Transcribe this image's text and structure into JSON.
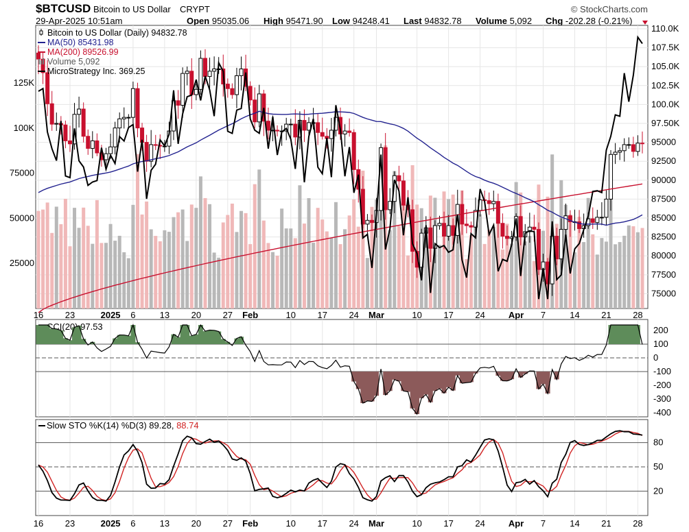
{
  "header": {
    "symbol": "$BTCUSD",
    "name": "Bitcoin to US Dollar",
    "exchange": "CRYPT",
    "watermark": "© StockCharts.com",
    "timestamp": "29-Apr-2025 10:51am",
    "quote": [
      {
        "label": "Open",
        "value": "95035.06"
      },
      {
        "label": "High",
        "value": "95471.90"
      },
      {
        "label": "Low",
        "value": "94248.41"
      },
      {
        "label": "Last",
        "value": "94832.78"
      },
      {
        "label": "Volume",
        "value": "5,092"
      },
      {
        "label": "Chg",
        "value": "-202.28 (-0.21%)"
      }
    ]
  },
  "legend": [
    {
      "text": "Bitcoin to US Dollar (Daily) 94832.78",
      "color": "#000000",
      "icon": "candlestick-icon"
    },
    {
      "text": "MA(50) 85431.98",
      "color": "#22228f",
      "icon": "line-icon"
    },
    {
      "text": "MA(200) 89526.99",
      "color": "#c8102e",
      "icon": "line-icon"
    },
    {
      "text": "Volume 5,092",
      "color": "#555555",
      "icon": "volume-bars-icon"
    },
    {
      "text": "MicroStrategy Inc. 369.25",
      "color": "#000000",
      "icon": "line-icon"
    }
  ],
  "cci_label": "CCI(20) 97.53",
  "sto_label_main": "Slow STO %K(14) %D(3) 89.28,",
  "sto_label_red": "88.74",
  "x_ticks": [
    {
      "label": "16",
      "bold": false
    },
    {
      "label": "23",
      "bold": false
    },
    {
      "label": "2025",
      "bold": true
    },
    {
      "label": "6",
      "bold": false
    },
    {
      "label": "13",
      "bold": false
    },
    {
      "label": "20",
      "bold": false
    },
    {
      "label": "27",
      "bold": false
    },
    {
      "label": "Feb",
      "bold": true
    },
    {
      "label": "10",
      "bold": false
    },
    {
      "label": "17",
      "bold": false
    },
    {
      "label": "24",
      "bold": false
    },
    {
      "label": "Mar",
      "bold": true
    },
    {
      "label": "10",
      "bold": false
    },
    {
      "label": "17",
      "bold": false
    },
    {
      "label": "24",
      "bold": false
    },
    {
      "label": "Apr",
      "bold": true
    },
    {
      "label": "7",
      "bold": false
    },
    {
      "label": "14",
      "bold": false
    },
    {
      "label": "21",
      "bold": false
    },
    {
      "label": "28",
      "bold": false
    }
  ],
  "chart_data": [
    {
      "type": "candlestick",
      "title": "Bitcoin to US Dollar (Daily)",
      "y_ticks": [
        "110.0K",
        "107.5K",
        "105.0K",
        "102.5K",
        "100.0K",
        "97.50K",
        "95000",
        "92500",
        "90000",
        "87500",
        "85000",
        "82500",
        "80000",
        "77500",
        "75000"
      ],
      "ylim": [
        73500,
        110000
      ],
      "volume_ticks": [
        "125K",
        "100K",
        "75000",
        "50000",
        "25000"
      ],
      "volume_ylim": [
        0,
        155000
      ],
      "grid": true,
      "legend_position": "top-left",
      "dates": [
        "2024-12-16",
        "2024-12-17",
        "2024-12-18",
        "2024-12-19",
        "2024-12-20",
        "2024-12-21",
        "2024-12-22",
        "2024-12-23",
        "2024-12-24",
        "2024-12-25",
        "2024-12-26",
        "2024-12-27",
        "2024-12-28",
        "2024-12-29",
        "2024-12-30",
        "2024-12-31",
        "2025-01-01",
        "2025-01-02",
        "2025-01-03",
        "2025-01-04",
        "2025-01-05",
        "2025-01-06",
        "2025-01-07",
        "2025-01-08",
        "2025-01-09",
        "2025-01-10",
        "2025-01-11",
        "2025-01-12",
        "2025-01-13",
        "2025-01-14",
        "2025-01-15",
        "2025-01-16",
        "2025-01-17",
        "2025-01-18",
        "2025-01-19",
        "2025-01-20",
        "2025-01-21",
        "2025-01-22",
        "2025-01-23",
        "2025-01-24",
        "2025-01-25",
        "2025-01-26",
        "2025-01-27",
        "2025-01-28",
        "2025-01-29",
        "2025-01-30",
        "2025-01-31",
        "2025-02-01",
        "2025-02-02",
        "2025-02-03",
        "2025-02-04",
        "2025-02-05",
        "2025-02-06",
        "2025-02-07",
        "2025-02-08",
        "2025-02-09",
        "2025-02-10",
        "2025-02-11",
        "2025-02-12",
        "2025-02-13",
        "2025-02-14",
        "2025-02-15",
        "2025-02-16",
        "2025-02-17",
        "2025-02-18",
        "2025-02-19",
        "2025-02-20",
        "2025-02-21",
        "2025-02-22",
        "2025-02-23",
        "2025-02-24",
        "2025-02-25",
        "2025-02-26",
        "2025-02-27",
        "2025-02-28",
        "2025-03-01",
        "2025-03-02",
        "2025-03-03",
        "2025-03-04",
        "2025-03-05",
        "2025-03-06",
        "2025-03-07",
        "2025-03-08",
        "2025-03-09",
        "2025-03-10",
        "2025-03-11",
        "2025-03-12",
        "2025-03-13",
        "2025-03-14",
        "2025-03-15",
        "2025-03-16",
        "2025-03-17",
        "2025-03-18",
        "2025-03-19",
        "2025-03-20",
        "2025-03-21",
        "2025-03-22",
        "2025-03-23",
        "2025-03-24",
        "2025-03-25",
        "2025-03-26",
        "2025-03-27",
        "2025-03-28",
        "2025-03-29",
        "2025-03-30",
        "2025-03-31",
        "2025-04-01",
        "2025-04-02",
        "2025-04-03",
        "2025-04-04",
        "2025-04-05",
        "2025-04-06",
        "2025-04-07",
        "2025-04-08",
        "2025-04-09",
        "2025-04-10",
        "2025-04-11",
        "2025-04-12",
        "2025-04-13",
        "2025-04-14",
        "2025-04-15",
        "2025-04-16",
        "2025-04-17",
        "2025-04-18",
        "2025-04-19",
        "2025-04-20",
        "2025-04-21",
        "2025-04-22",
        "2025-04-23",
        "2025-04-24",
        "2025-04-25",
        "2025-04-26",
        "2025-04-27",
        "2025-04-28",
        "2025-04-29"
      ],
      "close": [
        106000,
        104200,
        100100,
        97400,
        97500,
        97300,
        95200,
        94800,
        98700,
        99400,
        95800,
        94200,
        95200,
        93600,
        92700,
        93500,
        94400,
        96900,
        98100,
        98300,
        98300,
        102100,
        96900,
        95000,
        92500,
        94700,
        94600,
        94500,
        94500,
        96500,
        100500,
        99900,
        104100,
        104400,
        101300,
        102000,
        106100,
        103700,
        104400,
        104700,
        104700,
        102700,
        102100,
        101300,
        103800,
        104700,
        102400,
        100600,
        97700,
        101400,
        97800,
        96600,
        96600,
        96500,
        96500,
        97400,
        97400,
        95700,
        97900,
        96600,
        97600,
        97600,
        96300,
        95800,
        95500,
        96600,
        98300,
        96100,
        96500,
        96300,
        91400,
        88800,
        84200,
        84700,
        84400,
        86000,
        94300,
        86100,
        87200,
        90600,
        89900,
        86700,
        86100,
        80600,
        78500,
        83000,
        83700,
        81000,
        84000,
        84300,
        82600,
        84000,
        82700,
        86800,
        84200,
        84000,
        83800,
        86000,
        87400,
        87300,
        86900,
        87200,
        84300,
        82600,
        82300,
        82500,
        85200,
        82500,
        83200,
        83800,
        83500,
        78200,
        79200,
        76300,
        82600,
        79600,
        83500,
        85300,
        84500,
        84500,
        83600,
        84000,
        84900,
        84400,
        85100,
        85100,
        87500,
        93400,
        93700,
        93900,
        94700,
        94700,
        93800,
        94900,
        94832
      ]
    },
    {
      "type": "line",
      "title": "CCI(20)",
      "y_ticks": [
        "200",
        "100",
        "0",
        "-100",
        "-200",
        "-300",
        "-400"
      ],
      "ylim": [
        -430,
        280
      ],
      "reference_lines": [
        100,
        0,
        -100
      ],
      "last_value": 97.53
    },
    {
      "type": "line",
      "title": "Slow STO %K(14) %D(3)",
      "y_ticks": [
        "80",
        "50",
        "20"
      ],
      "ylim": [
        0,
        100
      ],
      "reference_lines": [
        80,
        50,
        20
      ],
      "series": [
        {
          "name": "%K",
          "last_value": 89.28,
          "color": "#000000"
        },
        {
          "name": "%D",
          "last_value": 88.74,
          "color": "#d12323"
        }
      ]
    }
  ],
  "colors": {
    "up_candle": "#000000",
    "down_candle": "#c8102e",
    "ma50": "#22228f",
    "ma200": "#c8102e",
    "mstr": "#000000",
    "volume_up": "#b8b8b8",
    "volume_down": "#f0b8b8",
    "cci_pos_fill": "#5e8c5a",
    "cci_neg_fill": "#8c5a5a",
    "sto_d": "#d12323"
  }
}
